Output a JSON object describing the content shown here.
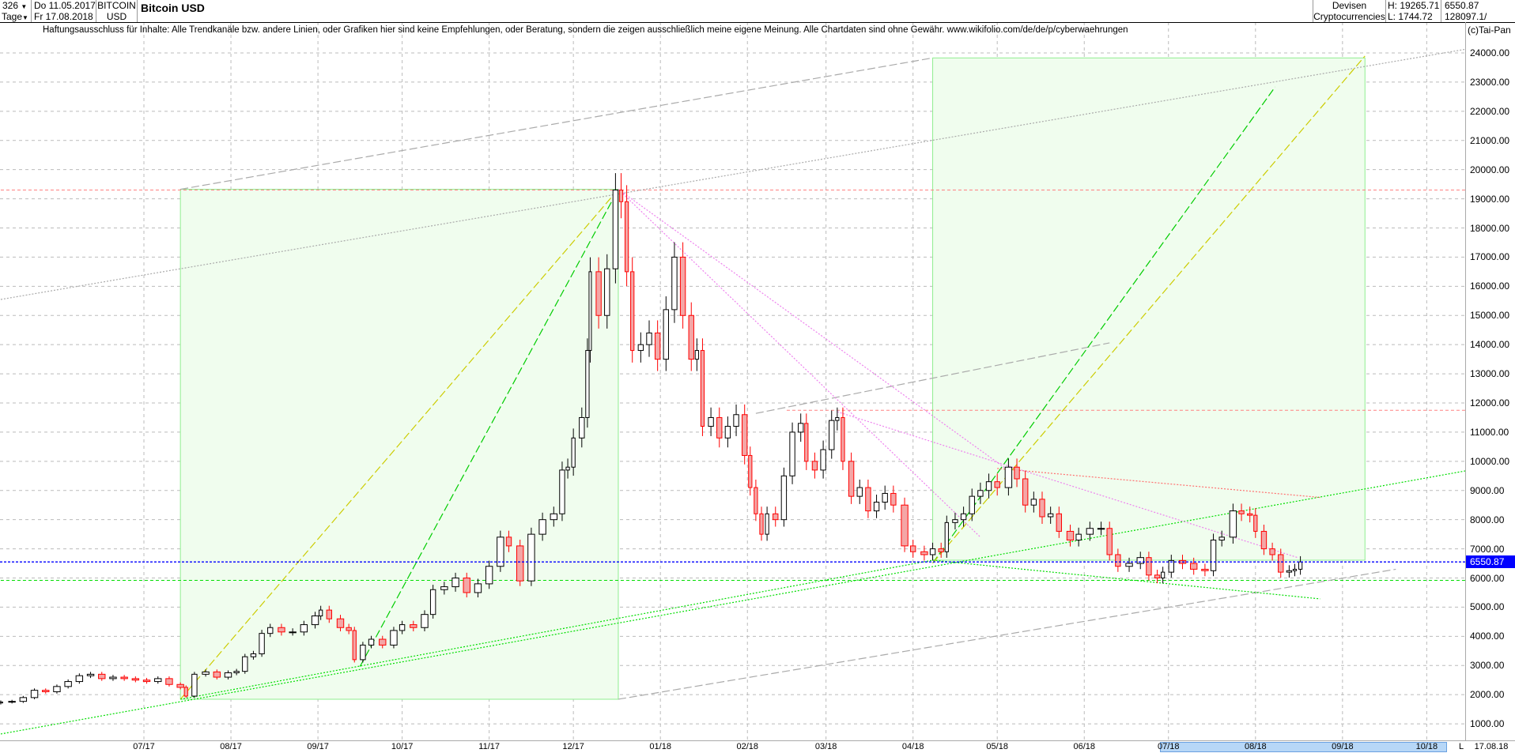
{
  "header": {
    "count": "326",
    "period": "Tage",
    "date_from": "Do 11.05.2017",
    "date_to": "Fr 17.08.2018",
    "symbol_line1": "BITCOIN",
    "symbol_line2": "USD",
    "title": "Bitcoin USD",
    "category_line1": "Devisen",
    "category_line2": "Cryptocurrencies",
    "high": "H: 19265.71",
    "low": "L: 1744.72",
    "last": "6550.87",
    "volume": "128097.1/"
  },
  "disclaimer": "Haftungsausschluss für Inhalte: Alle Trendkanäle bzw. andere Linien, oder Grafiken hier sind keine Empfehlungen, oder Beratung, sondern die zeigen ausschließlich meine eigene Meinung. Alle Chartdaten sind ohne Gewähr.  www.wikifolio.com/de/de/p/cyberwaehrungen",
  "copyright": "(c)Tai-Pan",
  "colors": {
    "up_body": "#ffffff",
    "down_body": "#f4a6a6",
    "down_line": "#ff0000",
    "current_price": "#0000ff",
    "box_fill": "#f0fdee",
    "box_stroke": "#90ee90"
  },
  "chart_data": {
    "type": "candlestick",
    "instrument": "Bitcoin USD",
    "ylim": [
      500,
      24600
    ],
    "y_ticks": [
      "24000.00",
      "23000.00",
      "22000.00",
      "21000.00",
      "20000.00",
      "19000.00",
      "18000.00",
      "17000.00",
      "16000.00",
      "15000.00",
      "14000.00",
      "13000.00",
      "12000.00",
      "11000.00",
      "10000.00",
      "9000.00",
      "8000.00",
      "7000.00",
      "6000.00",
      "5000.00",
      "4000.00",
      "3000.00",
      "2000.00",
      "1000.00"
    ],
    "x_ticks": [
      "07/17",
      "08/17",
      "09/17",
      "10/17",
      "11/17",
      "12/17",
      "01/18",
      "02/18",
      "03/18",
      "04/18",
      "05/18",
      "06/18",
      "07/18",
      "08/18",
      "09/18",
      "10/18"
    ],
    "x_tick_dates": [
      "2017-07-01",
      "2017-08-01",
      "2017-09-01",
      "2017-10-01",
      "2017-11-01",
      "2017-12-01",
      "2018-01-01",
      "2018-02-01",
      "2018-03-01",
      "2018-04-01",
      "2018-05-01",
      "2018-06-01",
      "2018-07-01",
      "2018-08-01",
      "2018-09-01",
      "2018-10-01"
    ],
    "x_end_label": "17.08.18",
    "x_scale_marker": "L",
    "current_price": 6550.87,
    "current_price_label": "6550.87",
    "grid": true,
    "closes": [
      [
        "2017-05-11",
        1750
      ],
      [
        "2017-05-15",
        1770
      ],
      [
        "2017-05-19",
        1900
      ],
      [
        "2017-05-23",
        2150
      ],
      [
        "2017-05-27",
        2100
      ],
      [
        "2017-05-31",
        2280
      ],
      [
        "2017-06-04",
        2450
      ],
      [
        "2017-06-08",
        2650
      ],
      [
        "2017-06-12",
        2700
      ],
      [
        "2017-06-16",
        2550
      ],
      [
        "2017-06-20",
        2600
      ],
      [
        "2017-06-24",
        2550
      ],
      [
        "2017-06-28",
        2500
      ],
      [
        "2017-07-02",
        2450
      ],
      [
        "2017-07-06",
        2550
      ],
      [
        "2017-07-10",
        2350
      ],
      [
        "2017-07-14",
        2250
      ],
      [
        "2017-07-16",
        1950
      ],
      [
        "2017-07-19",
        2700
      ],
      [
        "2017-07-23",
        2780
      ],
      [
        "2017-07-27",
        2600
      ],
      [
        "2017-07-31",
        2750
      ],
      [
        "2017-08-03",
        2800
      ],
      [
        "2017-08-06",
        3300
      ],
      [
        "2017-08-09",
        3400
      ],
      [
        "2017-08-12",
        4100
      ],
      [
        "2017-08-15",
        4300
      ],
      [
        "2017-08-19",
        4150
      ],
      [
        "2017-08-23",
        4150
      ],
      [
        "2017-08-27",
        4400
      ],
      [
        "2017-08-31",
        4700
      ],
      [
        "2017-09-02",
        4900
      ],
      [
        "2017-09-05",
        4600
      ],
      [
        "2017-09-09",
        4300
      ],
      [
        "2017-09-12",
        4200
      ],
      [
        "2017-09-14",
        3200
      ],
      [
        "2017-09-17",
        3700
      ],
      [
        "2017-09-20",
        3900
      ],
      [
        "2017-09-24",
        3700
      ],
      [
        "2017-09-28",
        4200
      ],
      [
        "2017-10-01",
        4400
      ],
      [
        "2017-10-05",
        4300
      ],
      [
        "2017-10-09",
        4750
      ],
      [
        "2017-10-12",
        5600
      ],
      [
        "2017-10-16",
        5700
      ],
      [
        "2017-10-20",
        6000
      ],
      [
        "2017-10-24",
        5500
      ],
      [
        "2017-10-28",
        5800
      ],
      [
        "2017-11-01",
        6400
      ],
      [
        "2017-11-05",
        7400
      ],
      [
        "2017-11-08",
        7100
      ],
      [
        "2017-11-12",
        5900
      ],
      [
        "2017-11-16",
        7500
      ],
      [
        "2017-11-20",
        8000
      ],
      [
        "2017-11-24",
        8200
      ],
      [
        "2017-11-27",
        9700
      ],
      [
        "2017-11-29",
        9800
      ],
      [
        "2017-12-01",
        10800
      ],
      [
        "2017-12-04",
        11500
      ],
      [
        "2017-12-06",
        13800
      ],
      [
        "2017-12-07",
        16500
      ],
      [
        "2017-12-10",
        15000
      ],
      [
        "2017-12-13",
        16600
      ],
      [
        "2017-12-16",
        19300
      ],
      [
        "2017-12-18",
        18900
      ],
      [
        "2017-12-20",
        16500
      ],
      [
        "2017-12-22",
        13800
      ],
      [
        "2017-12-25",
        14000
      ],
      [
        "2017-12-28",
        14400
      ],
      [
        "2017-12-31",
        13500
      ],
      [
        "2018-01-03",
        15200
      ],
      [
        "2018-01-06",
        17000
      ],
      [
        "2018-01-09",
        15000
      ],
      [
        "2018-01-12",
        13500
      ],
      [
        "2018-01-14",
        13800
      ],
      [
        "2018-01-16",
        11200
      ],
      [
        "2018-01-19",
        11500
      ],
      [
        "2018-01-22",
        10800
      ],
      [
        "2018-01-25",
        11200
      ],
      [
        "2018-01-28",
        11600
      ],
      [
        "2018-01-31",
        10200
      ],
      [
        "2018-02-02",
        9100
      ],
      [
        "2018-02-04",
        8200
      ],
      [
        "2018-02-06",
        7500
      ],
      [
        "2018-02-08",
        8200
      ],
      [
        "2018-02-11",
        8000
      ],
      [
        "2018-02-14",
        9500
      ],
      [
        "2018-02-17",
        11000
      ],
      [
        "2018-02-20",
        11300
      ],
      [
        "2018-02-22",
        10000
      ],
      [
        "2018-02-25",
        9700
      ],
      [
        "2018-02-28",
        10400
      ],
      [
        "2018-03-03",
        11400
      ],
      [
        "2018-03-05",
        11500
      ],
      [
        "2018-03-07",
        10000
      ],
      [
        "2018-03-10",
        8800
      ],
      [
        "2018-03-13",
        9100
      ],
      [
        "2018-03-16",
        8300
      ],
      [
        "2018-03-19",
        8600
      ],
      [
        "2018-03-22",
        8900
      ],
      [
        "2018-03-25",
        8500
      ],
      [
        "2018-03-29",
        7100
      ],
      [
        "2018-04-01",
        6900
      ],
      [
        "2018-04-05",
        6800
      ],
      [
        "2018-04-08",
        7000
      ],
      [
        "2018-04-11",
        6900
      ],
      [
        "2018-04-13",
        7900
      ],
      [
        "2018-04-16",
        8000
      ],
      [
        "2018-04-19",
        8200
      ],
      [
        "2018-04-22",
        8800
      ],
      [
        "2018-04-25",
        9000
      ],
      [
        "2018-04-28",
        9300
      ],
      [
        "2018-05-01",
        9100
      ],
      [
        "2018-05-05",
        9800
      ],
      [
        "2018-05-08",
        9400
      ],
      [
        "2018-05-11",
        8500
      ],
      [
        "2018-05-14",
        8700
      ],
      [
        "2018-05-17",
        8100
      ],
      [
        "2018-05-20",
        8200
      ],
      [
        "2018-05-23",
        7600
      ],
      [
        "2018-05-27",
        7300
      ],
      [
        "2018-05-30",
        7500
      ],
      [
        "2018-06-03",
        7700
      ],
      [
        "2018-06-07",
        7700
      ],
      [
        "2018-06-10",
        6800
      ],
      [
        "2018-06-13",
        6400
      ],
      [
        "2018-06-17",
        6500
      ],
      [
        "2018-06-21",
        6700
      ],
      [
        "2018-06-24",
        6100
      ],
      [
        "2018-06-27",
        6000
      ],
      [
        "2018-06-29",
        6200
      ],
      [
        "2018-07-02",
        6600
      ],
      [
        "2018-07-06",
        6500
      ],
      [
        "2018-07-10",
        6300
      ],
      [
        "2018-07-14",
        6250
      ],
      [
        "2018-07-17",
        7300
      ],
      [
        "2018-07-20",
        7400
      ],
      [
        "2018-07-24",
        8300
      ],
      [
        "2018-07-27",
        8200
      ],
      [
        "2018-07-30",
        8150
      ],
      [
        "2018-08-01",
        7600
      ],
      [
        "2018-08-04",
        7000
      ],
      [
        "2018-08-07",
        6800
      ],
      [
        "2018-08-10",
        6200
      ],
      [
        "2018-08-13",
        6250
      ],
      [
        "2018-08-15",
        6300
      ],
      [
        "2018-08-17",
        6550.87
      ]
    ],
    "drawings": [
      {
        "kind": "box",
        "from": [
          "2017-07-14",
          19325
        ],
        "to": [
          "2017-12-17",
          1843
        ]
      },
      {
        "kind": "box",
        "from": [
          "2018-04-08",
          23829
        ],
        "to": [
          "2018-09-09",
          6610
        ]
      },
      {
        "kind": "hline",
        "price": 19300,
        "color": "#ff8080",
        "from": "2017-05-11"
      },
      {
        "kind": "hline",
        "price": 11750,
        "color": "#ff8080",
        "from": "2018-02-15"
      },
      {
        "kind": "hline",
        "price": 5920,
        "color": "#00dd00",
        "from": "2017-05-11"
      },
      {
        "kind": "line",
        "from": [
          "2017-05-11",
          15549
        ],
        "to": [
          "2018-11-02",
          24425
        ],
        "color": "#aaaaaa",
        "style": "dot"
      },
      {
        "kind": "line",
        "from": [
          "2017-07-14",
          19325
        ],
        "to": [
          "2018-04-08",
          23829
        ],
        "color": "#aaaaaa",
        "style": "dash"
      },
      {
        "kind": "line",
        "from": [
          "2017-12-17",
          1843
        ],
        "to": [
          "2018-09-20",
          6300
        ],
        "color": "#aaaaaa",
        "style": "dash"
      },
      {
        "kind": "line",
        "from": [
          "2018-02-04",
          11643
        ],
        "to": [
          "2018-06-10",
          14060
        ],
        "color": "#aaaaaa",
        "style": "dash"
      },
      {
        "kind": "line",
        "from": [
          "2017-07-14",
          1843
        ],
        "to": [
          "2017-12-17",
          19325
        ],
        "color": "#cccc00",
        "style": "dash"
      },
      {
        "kind": "line",
        "from": [
          "2017-09-16",
          2968
        ],
        "to": [
          "2017-12-17",
          19325
        ],
        "color": "#00cc00",
        "style": "dash"
      },
      {
        "kind": "line",
        "from": [
          "2018-04-08",
          6510
        ],
        "to": [
          "2018-08-08",
          22835
        ],
        "color": "#00cc00",
        "style": "dash"
      },
      {
        "kind": "line",
        "from": [
          "2018-04-08",
          6510
        ],
        "to": [
          "2018-09-09",
          23894
        ],
        "color": "#cccc00",
        "style": "dash"
      },
      {
        "kind": "line",
        "from": [
          "2017-05-11",
          652
        ],
        "to": [
          "2018-11-02",
          9986
        ],
        "color": "#00dd00",
        "style": "dot"
      },
      {
        "kind": "line",
        "from": [
          "2017-07-14",
          1843
        ],
        "to": [
          "2018-04-08",
          6610
        ],
        "color": "#00dd00",
        "style": "dot"
      },
      {
        "kind": "line",
        "from": [
          "2018-04-08",
          6610
        ],
        "to": [
          "2018-08-24",
          5284
        ],
        "color": "#00dd00",
        "style": "dot"
      },
      {
        "kind": "line",
        "from": [
          "2018-05-01",
          9756
        ],
        "to": [
          "2018-08-24",
          8762
        ],
        "color": "#ff7070",
        "style": "dot"
      },
      {
        "kind": "line",
        "from": [
          "2017-12-17",
          19325
        ],
        "to": [
          "2018-05-04",
          9756
        ],
        "color": "#ee82ee",
        "style": "dot"
      },
      {
        "kind": "line",
        "from": [
          "2017-12-17",
          19325
        ],
        "to": [
          "2018-04-25",
          7400
        ],
        "color": "#ee82ee",
        "style": "dot"
      },
      {
        "kind": "line",
        "from": [
          "2018-03-05",
          11700
        ],
        "to": [
          "2018-08-16",
          6700
        ],
        "color": "#ee82ee",
        "style": "dot"
      }
    ]
  }
}
